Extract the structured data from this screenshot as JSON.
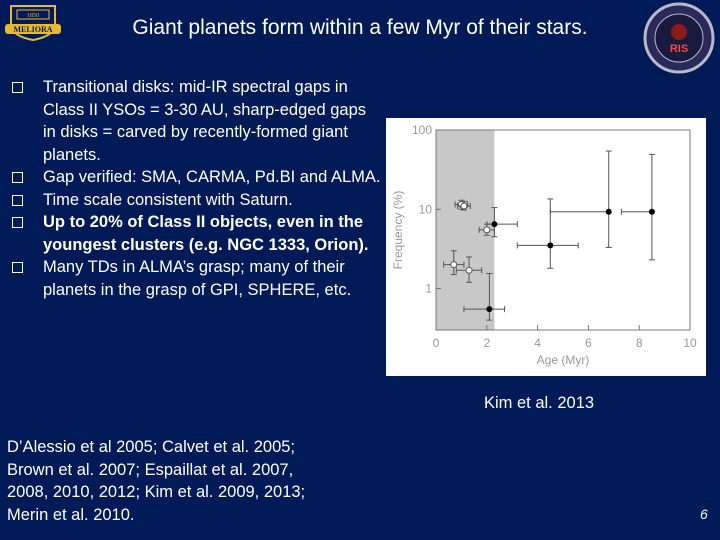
{
  "slide": {
    "title": "Giant planets form within a few Myr of their stars.",
    "page_number": "6",
    "caption": "Kim et al. 2013"
  },
  "logos": {
    "left_text": "MELIORA",
    "left_year": "1850",
    "left_colors": {
      "gold": "#e8b92f",
      "navy": "#001a57"
    },
    "right_text": "RIS",
    "right_colors": {
      "ring": "#b8b8c8",
      "center": "#8b1a1a"
    }
  },
  "bullets": [
    {
      "text": "Transitional disks: mid-IR spectral gaps in Class II YSOs = 3-30 AU, sharp-edged gaps in disks = carved by recently-formed giant planets.",
      "bold": false
    },
    {
      "text": "Gap verified: SMA, CARMA, Pd.BI and ALMA.",
      "bold": false
    },
    {
      "text": "Time scale consistent with Saturn.",
      "bold": false
    },
    {
      "text": "Up to 20% of Class II objects, even in the youngest clusters (e.g. NGC 1333, Orion).",
      "bold": true
    },
    {
      "text": "Many TDs in ALMA’s grasp; many of their planets in the grasp of GPI, SPHERE, etc.",
      "bold": false
    }
  ],
  "references": [
    "D’Alessio et al 2005; Calvet et al. 2005;",
    "Brown et al. 2007; Espaillat et al. 2007,",
    "2008, 2010, 2012; Kim et al. 2009, 2013;",
    "Merin et al. 2010."
  ],
  "chart_data": {
    "type": "scatter",
    "xlabel": "Age (Myr)",
    "ylabel": "Frequency (%)",
    "xlim": [
      0,
      10
    ],
    "ylim": [
      0.3,
      100
    ],
    "yscale": "log",
    "x_ticks": [
      "0",
      "2",
      "4",
      "6",
      "8",
      "10"
    ],
    "y_ticks": [
      {
        "value": 100,
        "label": "100"
      },
      {
        "value": 10,
        "label": "10"
      },
      {
        "value": 1,
        "label": "1"
      }
    ],
    "shaded_region": {
      "x0": 0,
      "x1": 2.3,
      "color": "#c8c8c8"
    },
    "series": [
      {
        "marker": "filled",
        "points": [
          {
            "x": 2.1,
            "y": 0.55,
            "xerr": [
              1.0,
              0.6
            ],
            "yerr": [
              0.15,
              1.0
            ]
          },
          {
            "x": 2.3,
            "y": 6.5,
            "xerr": [
              0.3,
              0.9
            ],
            "yerr": [
              2.0,
              4.0
            ]
          },
          {
            "x": 4.5,
            "y": 3.5,
            "xerr": [
              1.3,
              1.1
            ],
            "yerr": [
              1.7,
              10.0
            ]
          },
          {
            "x": 6.8,
            "y": 9.3,
            "xerr": [
              2.3,
              0.0
            ],
            "yerr": [
              6.0,
              45.0
            ]
          },
          {
            "x": 8.5,
            "y": 9.3,
            "xerr": [
              1.2,
              0.0
            ],
            "yerr": [
              7.0,
              40.0
            ]
          }
        ]
      },
      {
        "marker": "open",
        "points": [
          {
            "x": 1.0,
            "y": 11.5,
            "xerr": [
              0.25,
              0.25
            ],
            "yerr": [
              1.5,
              1.5
            ]
          },
          {
            "x": 1.1,
            "y": 11.0,
            "xerr": [
              0.25,
              0.25
            ],
            "yerr": [
              1.2,
              1.5
            ]
          },
          {
            "x": 2.0,
            "y": 5.5,
            "xerr": [
              0.3,
              0.3
            ],
            "yerr": [
              0.8,
              1.0
            ]
          },
          {
            "x": 0.7,
            "y": 2.0,
            "xerr": [
              0.4,
              0.4
            ],
            "yerr": [
              0.5,
              1.0
            ]
          },
          {
            "x": 1.3,
            "y": 1.7,
            "xerr": [
              0.5,
              0.5
            ],
            "yerr": [
              0.5,
              0.8
            ]
          }
        ]
      }
    ]
  }
}
